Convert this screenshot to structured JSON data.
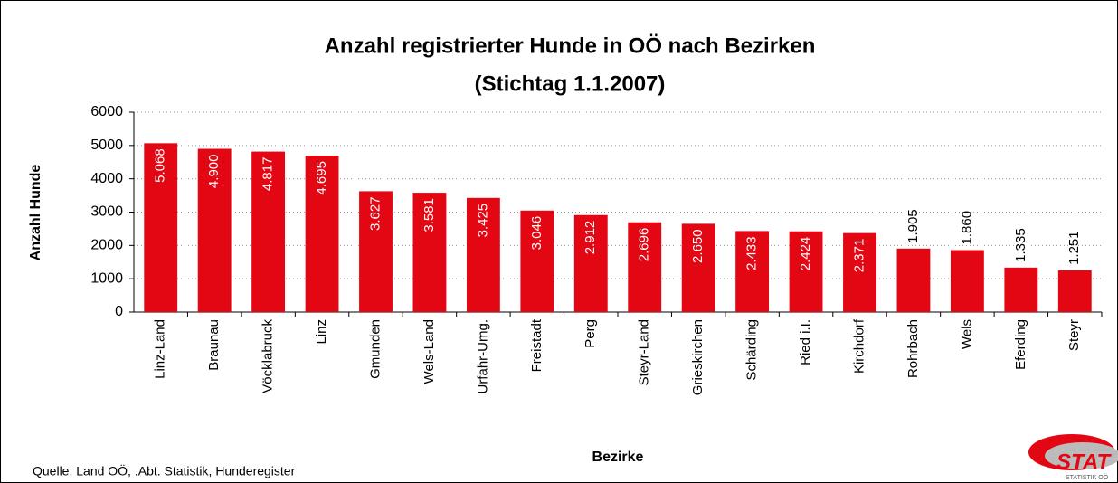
{
  "chart_data": {
    "type": "bar",
    "title": "Anzahl registrierter Hunde in OÖ nach Bezirken",
    "subtitle": "(Stichtag 1.1.2007)",
    "y_label": "Anzahl Hunde",
    "x_label": "Bezirke",
    "source": "Quelle: Land OÖ, .Abt. Statistik,  Hunderegister",
    "logo": "STAT",
    "logo_sub": "STATISTIK OÖ",
    "categories": [
      "Linz-Land",
      "Braunau",
      "Vöcklabruck",
      "Linz",
      "Gmunden",
      "Wels-Land",
      "Urfahr-Umg.",
      "Freistadt",
      "Perg",
      "Steyr-Land",
      "Grieskirchen",
      "Schärding",
      "Ried i.I.",
      "Kirchdorf",
      "Rohrbach",
      "Wels",
      "Eferding",
      "Steyr"
    ],
    "values": [
      5068,
      4900,
      4817,
      4695,
      3627,
      3581,
      3425,
      3046,
      2912,
      2696,
      2650,
      2433,
      2424,
      2371,
      1905,
      1860,
      1335,
      1251
    ],
    "value_labels": [
      "5.068",
      "4.900",
      "4.817",
      "4.695",
      "3.627",
      "3.581",
      "3.425",
      "3.046",
      "2.912",
      "2.696",
      "2.650",
      "2.433",
      "2.424",
      "2.371",
      "1.905",
      "1.860",
      "1.335",
      "1.251"
    ],
    "color": "#e30613",
    "ylim": [
      0,
      6000
    ],
    "yticks": [
      0,
      1000,
      2000,
      3000,
      4000,
      5000,
      6000
    ],
    "grid": true
  }
}
